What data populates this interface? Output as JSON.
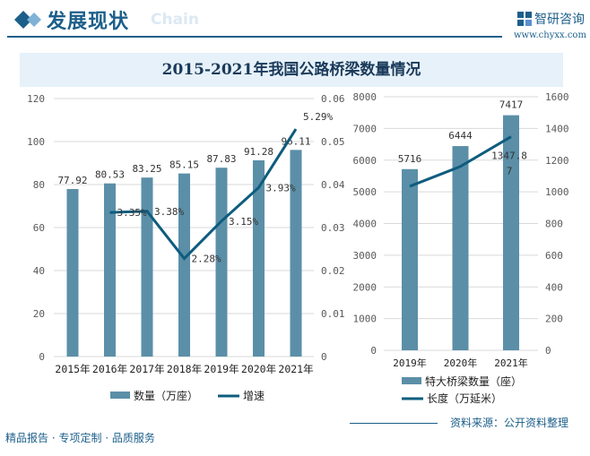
{
  "header": {
    "title": "发展现状",
    "watermark": "Chain",
    "logo_text": "智研咨询",
    "url": "www.chyxx.com"
  },
  "footer": {
    "slogan": "精品报告 · 专项定制 · 品质服务",
    "source": "资料来源：公开资料整理"
  },
  "colors": {
    "bar": "#5b8fa8",
    "line": "#0e5c7e",
    "accent": "#1c5f8a",
    "title_band": "#e6f1f9"
  },
  "chart_data": [
    {
      "type": "bar+line",
      "title": "2015-2021年我国公路桥梁数量情况",
      "categories": [
        "2015年",
        "2016年",
        "2017年",
        "2018年",
        "2019年",
        "2020年",
        "2021年"
      ],
      "series": [
        {
          "name": "数量（万座）",
          "type": "bar",
          "axis": "left",
          "values": [
            77.92,
            80.53,
            83.25,
            85.15,
            87.83,
            91.28,
            96.11
          ],
          "labels": [
            "77.92",
            "80.53",
            "83.25",
            "85.15",
            "87.83",
            "91.28",
            "96.11"
          ]
        },
        {
          "name": "增速",
          "type": "line",
          "axis": "right",
          "values": [
            null,
            0.0335,
            0.0338,
            0.0228,
            0.0315,
            0.0393,
            0.0529
          ],
          "labels": [
            "",
            "3.35%",
            "3.38%",
            "2.28%",
            "3.15%",
            "3.93%",
            "5.29%"
          ]
        }
      ],
      "ylim": [
        0,
        120
      ],
      "yticks": [
        "0",
        "20",
        "40",
        "60",
        "80",
        "100",
        "120"
      ],
      "y2lim": [
        0,
        0.06
      ],
      "y2ticks": [
        "0",
        "0.01",
        "0.02",
        "0.03",
        "0.04",
        "0.05",
        "0.06"
      ],
      "grid": true,
      "legend": "bottom"
    },
    {
      "type": "bar+line",
      "categories": [
        "2019年",
        "2020年",
        "2021年"
      ],
      "series": [
        {
          "name": "特大桥梁数量（座）",
          "type": "bar",
          "axis": "left",
          "values": [
            5716,
            6444,
            7417
          ],
          "labels": [
            "5716",
            "6444",
            "7417"
          ]
        },
        {
          "name": "长度（万延米）",
          "type": "line",
          "axis": "right",
          "values": [
            1035,
            1160,
            1347.87
          ],
          "labels": [
            "",
            "",
            "1347.8\n7"
          ]
        }
      ],
      "ylim": [
        0,
        8000
      ],
      "yticks": [
        "0",
        "1000",
        "2000",
        "3000",
        "4000",
        "5000",
        "6000",
        "7000",
        "8000"
      ],
      "y2lim": [
        0,
        1600
      ],
      "y2ticks": [
        "0",
        "200",
        "400",
        "600",
        "800",
        "1000",
        "1200",
        "1400",
        "1600"
      ],
      "grid": true,
      "legend": "bottom"
    }
  ]
}
